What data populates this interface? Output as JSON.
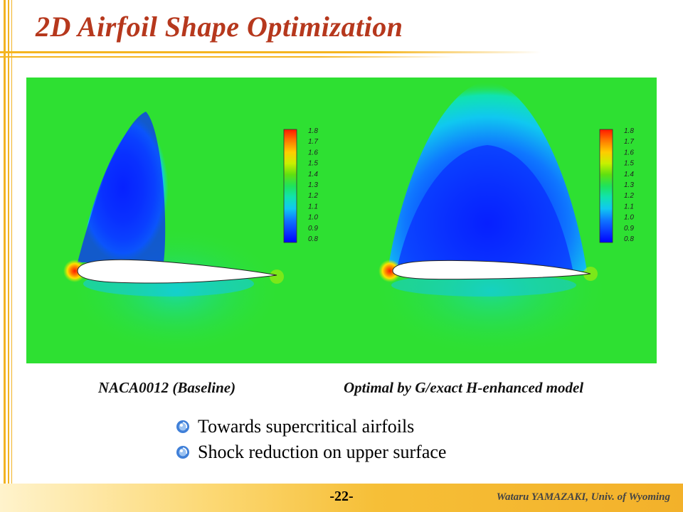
{
  "slide": {
    "title": "2D Airfoil Shape Optimization",
    "page_number": "-22-",
    "author": "Wataru YAMAZAKI, Univ. of Wyoming"
  },
  "panels": [
    {
      "caption": "NACA0012 (Baseline)"
    },
    {
      "caption": "Optimal by G/exact H-enhanced model"
    }
  ],
  "colorbar": {
    "labels": [
      "1.8",
      "1.7",
      "1.6",
      "1.5",
      "1.4",
      "1.3",
      "1.2",
      "1.1",
      "1.0",
      "0.9",
      "0.8"
    ],
    "colors": [
      "#ff1a00",
      "#ff7a00",
      "#ffcc00",
      "#c8f000",
      "#5fe010",
      "#1fe35a",
      "#10e3b0",
      "#10c8f0",
      "#0f78ff",
      "#0a3cff",
      "#0000ff"
    ]
  },
  "bullets": [
    "Towards supercritical airfoils",
    "Shock reduction on upper surface"
  ],
  "theme": {
    "title_color": "#b6381d",
    "accent": "#f2b322",
    "field_color": "#2ee032"
  }
}
